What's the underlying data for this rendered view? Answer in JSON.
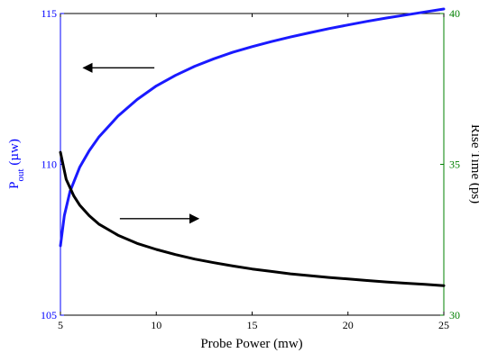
{
  "chart_data": {
    "type": "line",
    "xlabel": "Probe Power (mw)",
    "ylabel_left": {
      "main": "P",
      "sub": "out",
      "rest": " (µw)"
    },
    "ylabel_right": "Rise Time (ps)",
    "xlim": [
      5,
      25
    ],
    "ylim_left": [
      105,
      115
    ],
    "ylim_right": [
      30,
      40
    ],
    "x_ticks": [
      "5",
      "10",
      "15",
      "20",
      "25"
    ],
    "y_left_ticks": [
      "105",
      "110",
      "115"
    ],
    "y_right_ticks": [
      "30",
      "35",
      "40"
    ],
    "colors": {
      "left_axis": "#0000ff",
      "right_axis": "#008000",
      "pout_line": "#1a1aff",
      "rise_line": "#000000"
    },
    "series": [
      {
        "axis": "left",
        "x": [
          5.0,
          5.2,
          5.5,
          6.0,
          6.5,
          7.0,
          8.0,
          9.0,
          10.0,
          11.0,
          12.0,
          13.0,
          14.0,
          15.0,
          16.0,
          17.0,
          18.0,
          19.0,
          20.0,
          21.0,
          22.0,
          23.0,
          24.0,
          25.0
        ],
        "y": [
          107.3,
          108.3,
          109.1,
          109.9,
          110.45,
          110.9,
          111.6,
          112.15,
          112.6,
          112.95,
          113.25,
          113.5,
          113.72,
          113.9,
          114.07,
          114.22,
          114.36,
          114.5,
          114.62,
          114.74,
          114.85,
          114.95,
          115.05,
          115.15
        ]
      },
      {
        "axis": "right",
        "x": [
          5.0,
          5.3,
          5.7,
          6.0,
          6.5,
          7.0,
          8.0,
          9.0,
          10.0,
          11.0,
          12.0,
          13.0,
          14.0,
          15.0,
          16.0,
          17.0,
          18.0,
          19.0,
          20.0,
          21.0,
          22.0,
          23.0,
          24.0,
          25.0
        ],
        "y": [
          35.4,
          34.5,
          33.95,
          33.65,
          33.3,
          33.02,
          32.65,
          32.38,
          32.18,
          32.01,
          31.86,
          31.74,
          31.63,
          31.53,
          31.45,
          31.37,
          31.31,
          31.25,
          31.2,
          31.15,
          31.1,
          31.06,
          31.02,
          30.98
        ]
      }
    ],
    "annotations": [
      {
        "type": "arrow",
        "direction": "left",
        "target": "left-axis",
        "from": [
          9.9,
          113.2
        ],
        "to": [
          6.2,
          113.2
        ]
      },
      {
        "type": "arrow",
        "direction": "right",
        "target": "right-axis",
        "from": [
          8.1,
          33.2
        ],
        "to": [
          12.2,
          33.2
        ]
      }
    ]
  }
}
